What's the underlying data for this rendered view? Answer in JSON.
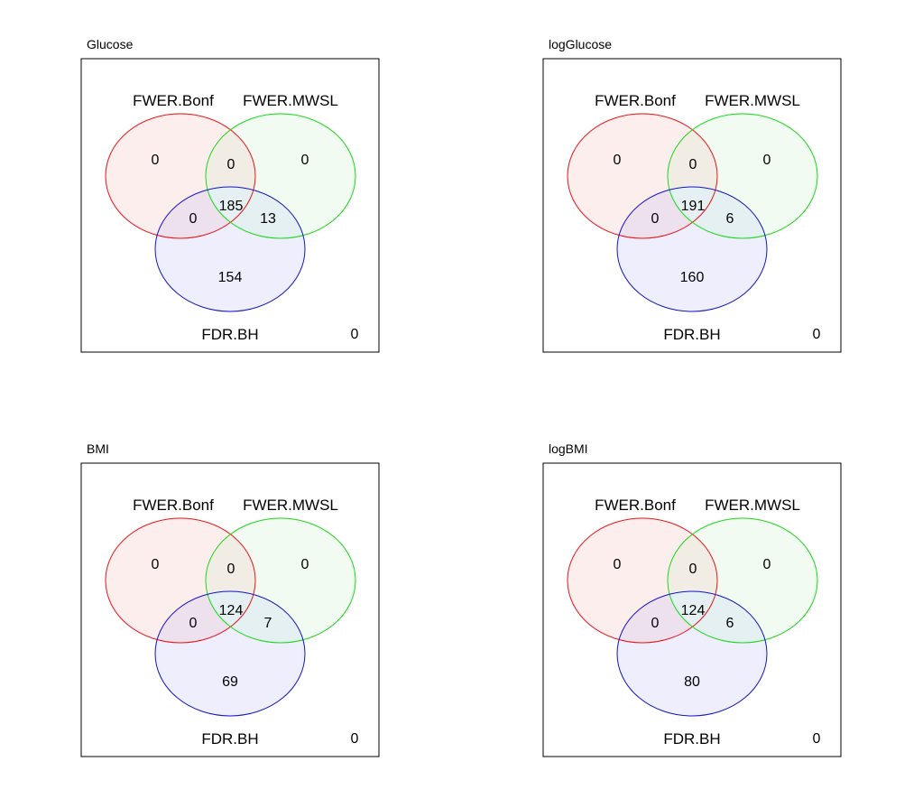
{
  "sets": {
    "a": {
      "name": "FWER.Bonf",
      "stroke": "#e8141a",
      "fill": "#fdeeee"
    },
    "b": {
      "name": "FWER.MWSL",
      "stroke": "#1ad81a",
      "fill": "#f1fbf1"
    },
    "c": {
      "name": "FDR.BH",
      "stroke": "#1414c8",
      "fill": "#eeeefd"
    }
  },
  "panels": [
    {
      "title": "Glucose",
      "counts": {
        "a_only": "0",
        "b_only": "0",
        "c_only": "154",
        "ab": "0",
        "ac": "0",
        "bc": "13",
        "abc": "185",
        "outside": "0"
      }
    },
    {
      "title": "logGlucose",
      "counts": {
        "a_only": "0",
        "b_only": "0",
        "c_only": "160",
        "ab": "0",
        "ac": "0",
        "bc": "6",
        "abc": "191",
        "outside": "0"
      }
    },
    {
      "title": "BMI",
      "counts": {
        "a_only": "0",
        "b_only": "0",
        "c_only": "69",
        "ab": "0",
        "ac": "0",
        "bc": "7",
        "abc": "124",
        "outside": "0"
      }
    },
    {
      "title": "logBMI",
      "counts": {
        "a_only": "0",
        "b_only": "0",
        "c_only": "80",
        "ab": "0",
        "ac": "0",
        "bc": "6",
        "abc": "124",
        "outside": "0"
      }
    }
  ]
}
